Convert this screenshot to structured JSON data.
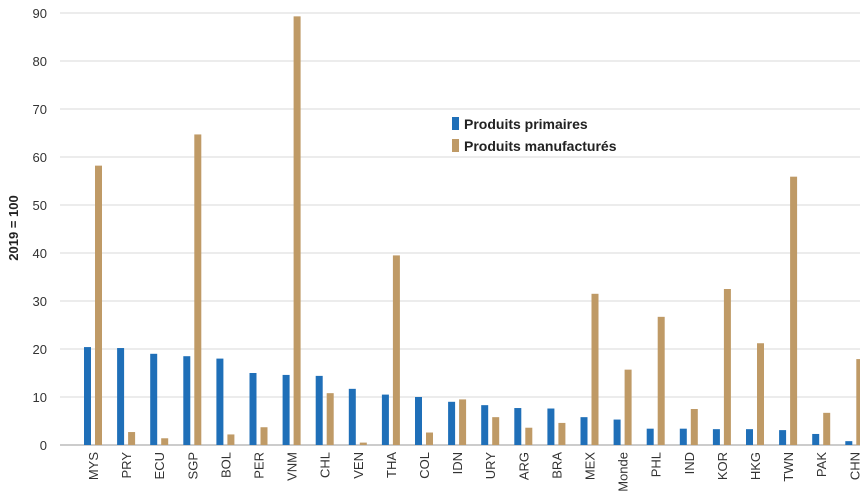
{
  "chart_data": {
    "type": "bar",
    "title": "",
    "xlabel": "",
    "ylabel": "2019 = 100",
    "ylim": [
      0,
      90
    ],
    "yticks": [
      0,
      10,
      20,
      30,
      40,
      50,
      60,
      70,
      80,
      90
    ],
    "grid": "horizontal",
    "legend_position": "center-right",
    "categories": [
      "MYS",
      "PRY",
      "ECU",
      "SGP",
      "BOL",
      "PER",
      "VNM",
      "CHL",
      "VEN",
      "THA",
      "COL",
      "IDN",
      "URY",
      "ARG",
      "BRA",
      "MEX",
      "Monde",
      "PHL",
      "IND",
      "KOR",
      "HKG",
      "TWN",
      "PAK",
      "CHN"
    ],
    "series": [
      {
        "name": "Produits primaires",
        "color": "#1f6fb8",
        "values": [
          20.4,
          20.2,
          19.0,
          18.5,
          18.0,
          15.0,
          14.6,
          14.4,
          11.7,
          10.5,
          10.0,
          9.0,
          8.3,
          7.7,
          7.6,
          5.8,
          5.3,
          3.4,
          3.4,
          3.3,
          3.3,
          3.1,
          2.3,
          0.8
        ]
      },
      {
        "name": "Produits manufacturés",
        "color": "#bf9a66",
        "values": [
          58.2,
          2.7,
          1.4,
          64.7,
          2.2,
          3.7,
          89.3,
          10.8,
          0.5,
          39.5,
          2.6,
          9.5,
          5.8,
          3.6,
          4.6,
          31.5,
          15.7,
          26.7,
          7.5,
          32.5,
          21.2,
          55.9,
          6.7,
          17.9
        ]
      }
    ]
  }
}
